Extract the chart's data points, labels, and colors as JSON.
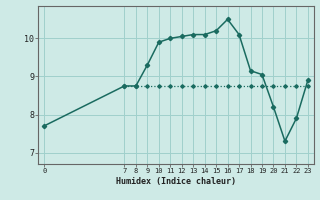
{
  "title": "",
  "xlabel": "Humidex (Indice chaleur)",
  "bg_color": "#ceeae6",
  "line1_color": "#1a6b60",
  "line2_color": "#1a6b60",
  "grid_color": "#a0d0cc",
  "line1_x": [
    0,
    7,
    8,
    9,
    10,
    11,
    12,
    13,
    14,
    15,
    16,
    17,
    18,
    19,
    20,
    21,
    22,
    23
  ],
  "line1_y": [
    7.7,
    8.75,
    8.75,
    9.3,
    9.9,
    10.0,
    10.05,
    10.1,
    10.1,
    10.2,
    10.5,
    10.1,
    9.15,
    9.05,
    8.2,
    7.3,
    7.9,
    8.9
  ],
  "line2_x": [
    7,
    8,
    9,
    10,
    11,
    12,
    13,
    14,
    15,
    16,
    17,
    18,
    19,
    20,
    21,
    22,
    23
  ],
  "line2_y": [
    8.75,
    8.75,
    8.75,
    8.75,
    8.75,
    8.75,
    8.75,
    8.75,
    8.75,
    8.75,
    8.75,
    8.75,
    8.75,
    8.75,
    8.75,
    8.75,
    8.75
  ],
  "xlim": [
    -0.5,
    23.5
  ],
  "ylim": [
    6.7,
    10.85
  ],
  "yticks": [
    7,
    8,
    9,
    10
  ],
  "xticks": [
    0,
    7,
    8,
    9,
    10,
    11,
    12,
    13,
    14,
    15,
    16,
    17,
    18,
    19,
    20,
    21,
    22,
    23
  ]
}
